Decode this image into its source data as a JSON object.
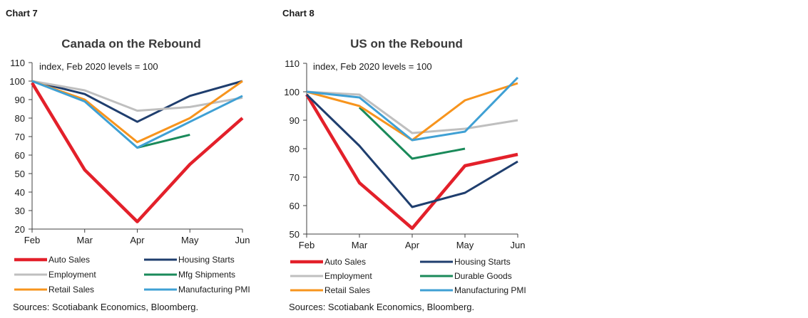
{
  "chart_data": [
    {
      "type": "line",
      "chart_label": "Chart 7",
      "title": "Canada on the Rebound",
      "note": "index,  Feb 2020 levels = 100",
      "categories": [
        "Feb",
        "Mar",
        "Apr",
        "May",
        "Jun"
      ],
      "ylim": [
        20,
        110
      ],
      "yticks": [
        20,
        30,
        40,
        50,
        60,
        70,
        80,
        90,
        100,
        110
      ],
      "series": [
        {
          "name": "Auto Sales",
          "color": "#e3202a",
          "values": [
            99,
            52,
            24,
            55,
            80
          ]
        },
        {
          "name": "Housing Starts",
          "color": "#1f3e6e",
          "values": [
            100,
            93,
            78,
            92,
            100
          ]
        },
        {
          "name": "Employment",
          "color": "#bfbfbf",
          "values": [
            100,
            95,
            84,
            86,
            91
          ]
        },
        {
          "name": "Mfg Shipments",
          "color": "#1a8a5a",
          "values": [
            null,
            null,
            64,
            71,
            null
          ]
        },
        {
          "name": "Retail Sales",
          "color": "#f7941d",
          "values": [
            100,
            90,
            67,
            80,
            100
          ]
        },
        {
          "name": "Manufacturing PMI",
          "color": "#3fa0d4",
          "values": [
            100,
            89,
            64,
            78,
            92
          ]
        }
      ],
      "legend_order": [
        [
          "Auto Sales",
          "Housing Starts"
        ],
        [
          "Employment",
          "Mfg Shipments"
        ],
        [
          "Retail Sales",
          "Manufacturing PMI"
        ]
      ],
      "source": "Sources: Scotiabank Economics,  Bloomberg."
    },
    {
      "type": "line",
      "chart_label": "Chart 8",
      "title": "US on the Rebound",
      "note": "index, Feb 2020 levels = 100",
      "categories": [
        "Feb",
        "Mar",
        "Apr",
        "May",
        "Jun"
      ],
      "ylim": [
        50,
        110
      ],
      "yticks": [
        50,
        60,
        70,
        80,
        90,
        100,
        110
      ],
      "series": [
        {
          "name": "Auto Sales",
          "color": "#e3202a",
          "values": [
            99,
            68,
            52,
            74,
            78
          ]
        },
        {
          "name": "Housing Starts",
          "color": "#1f3e6e",
          "values": [
            99,
            81,
            59.5,
            64.5,
            75.5
          ]
        },
        {
          "name": "Employment",
          "color": "#bfbfbf",
          "values": [
            100,
            99,
            85.5,
            87,
            90
          ]
        },
        {
          "name": "Durable Goods",
          "color": "#1a8a5a",
          "values": [
            null,
            94.5,
            76.5,
            80,
            null
          ]
        },
        {
          "name": "Retail Sales",
          "color": "#f7941d",
          "values": [
            100,
            95,
            83,
            97,
            103
          ]
        },
        {
          "name": "Manufacturing PMI",
          "color": "#3fa0d4",
          "values": [
            100,
            98,
            83,
            86,
            105
          ]
        }
      ],
      "legend_order": [
        [
          "Auto Sales",
          "Housing Starts"
        ],
        [
          "Employment",
          "Durable Goods"
        ],
        [
          "Retail Sales",
          "Manufacturing PMI"
        ]
      ],
      "source": "Sources: Scotiabank Economics,  Bloomberg."
    }
  ]
}
